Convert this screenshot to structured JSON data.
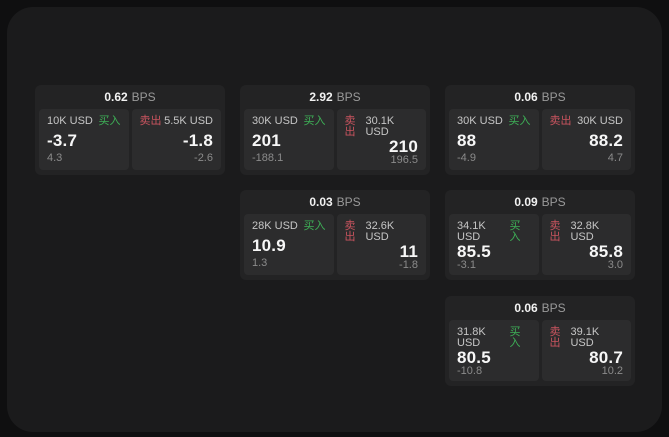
{
  "labels": {
    "bps_unit": "BPS",
    "buy": "买入",
    "sell": "卖出"
  },
  "colors": {
    "buy": "#3eb157",
    "sell": "#c9545f",
    "background": "#0f0f10",
    "window": "#1b1b1c",
    "card": "#232324",
    "tile": "#2c2c2d"
  },
  "cards": [
    {
      "bps": "0.62",
      "buy": {
        "amount": "10K USD",
        "price": "-3.7",
        "delta": "4.3"
      },
      "sell": {
        "amount": "5.5K USD",
        "price": "-1.8",
        "delta": "-2.6"
      }
    },
    {
      "bps": "2.92",
      "buy": {
        "amount": "30K USD",
        "price": "201",
        "delta": "-188.1"
      },
      "sell": {
        "amount": "30.1K USD",
        "price": "210",
        "delta": "196.5"
      }
    },
    {
      "bps": "0.06",
      "buy": {
        "amount": "30K USD",
        "price": "88",
        "delta": "-4.9"
      },
      "sell": {
        "amount": "30K USD",
        "price": "88.2",
        "delta": "4.7"
      }
    },
    {
      "bps": "0.03",
      "buy": {
        "amount": "28K USD",
        "price": "10.9",
        "delta": "1.3"
      },
      "sell": {
        "amount": "32.6K USD",
        "price": "11",
        "delta": "-1.8"
      }
    },
    {
      "bps": "0.09",
      "buy": {
        "amount": "34.1K USD",
        "price": "85.5",
        "delta": "-3.1"
      },
      "sell": {
        "amount": "32.8K USD",
        "price": "85.8",
        "delta": "3.0"
      }
    },
    {
      "bps": "0.06",
      "buy": {
        "amount": "31.8K USD",
        "price": "80.5",
        "delta": "-10.8"
      },
      "sell": {
        "amount": "39.1K USD",
        "price": "80.7",
        "delta": "10.2"
      }
    }
  ]
}
